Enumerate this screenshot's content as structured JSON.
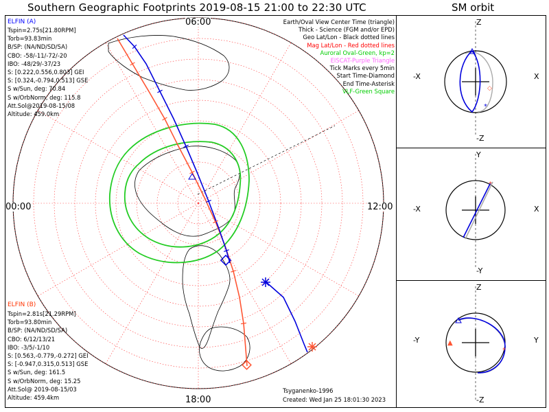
{
  "title": "Southern Geographic Footprints 2019-08-15 21:00 to 22:30 UTC",
  "sm_title": "SM orbit",
  "legend": [
    {
      "text": "Earth/Oval View Center Time (triangle)",
      "color": "#000000"
    },
    {
      "text": "Thick - Science (FGM and/or EPD)",
      "color": "#000000"
    },
    {
      "text": "Geo Lat/Lon - Black dotted lines",
      "color": "#000000"
    },
    {
      "text": "Mag Lat/Lon - Red dotted lines",
      "color": "#ff0000"
    },
    {
      "text": "Auroral Oval-Green, kp=2",
      "color": "#00cc00"
    },
    {
      "text": "EISCAT-Purple Triangle",
      "color": "#ff66ff"
    },
    {
      "text": "Tick Marks every 5min",
      "color": "#000000"
    },
    {
      "text": "Start Time-Diamond",
      "color": "#000000"
    },
    {
      "text": "End Time-Asterisk",
      "color": "#000000"
    },
    {
      "text": "VLF-Green Square",
      "color": "#00cc00"
    }
  ],
  "elfin_a": {
    "name": "ELFIN (A)",
    "color": "#0000ff",
    "lines": [
      "Tspin=2.75s[21.80RPM]",
      "Torb=93.83min",
      "B/SP: (NA/ND/SD/SA)",
      "CBO: -58/-11/-72/-20",
      "IBO: -48/29/-37/23",
      "S: [0.222,0.556,0.803] GEI",
      "S: [0.324,-0.794,0.513] GSE",
      "S w/Sun, deg: 70.84",
      "S w/OrbNorm, deg: 115.8",
      "Att.Sol@2019-08-15/08",
      "Altitude: 459.0km"
    ]
  },
  "elfin_b": {
    "name": "ELFIN (B)",
    "color": "#ff3300",
    "lines": [
      "Tspin=2.81s[21.29RPM]",
      "Torb=93.80min",
      "B/SP: (NA/ND/SD/SA)",
      "CBO: 6/12/13/21",
      "IBO: -3/5/-1/10",
      "S: [0.563,-0.779,-0.272] GEI",
      "S: [-0.947,0.315,0.513] GSE",
      "S w/Sun, deg: 161.5",
      "S w/OrbNorm, deg: 15.25",
      "Att.Sol@ 2019-08-15/03",
      "Altitude: 459.4km"
    ]
  },
  "footer": {
    "author": "Tsyganenko-1996",
    "created": "Created: Wed Jan 25 18:01:30 2023"
  },
  "clock_labels": {
    "top": "06:00",
    "left": "00:00",
    "right": "12:00",
    "bottom": "18:00"
  },
  "sm_panels": [
    {
      "top": "Z",
      "bottom": "-Z",
      "left": "-X",
      "right": "X"
    },
    {
      "top": "Y",
      "bottom": "-Y",
      "left": "-X",
      "right": "X"
    },
    {
      "top": "Z",
      "bottom": "-Z",
      "left": "-Y",
      "right": "Y"
    }
  ],
  "chart_data": {
    "type": "scatter",
    "title": "Southern Geographic Footprints 2019-08-15 21:00 to 22:30 UTC",
    "projection": "polar-south",
    "series": [
      {
        "name": "ELFIN (A)",
        "color": "#0000ff"
      },
      {
        "name": "ELFIN (B)",
        "color": "#ff3300"
      }
    ],
    "auroral_oval_kp": 2,
    "tick_interval_min": 5
  }
}
